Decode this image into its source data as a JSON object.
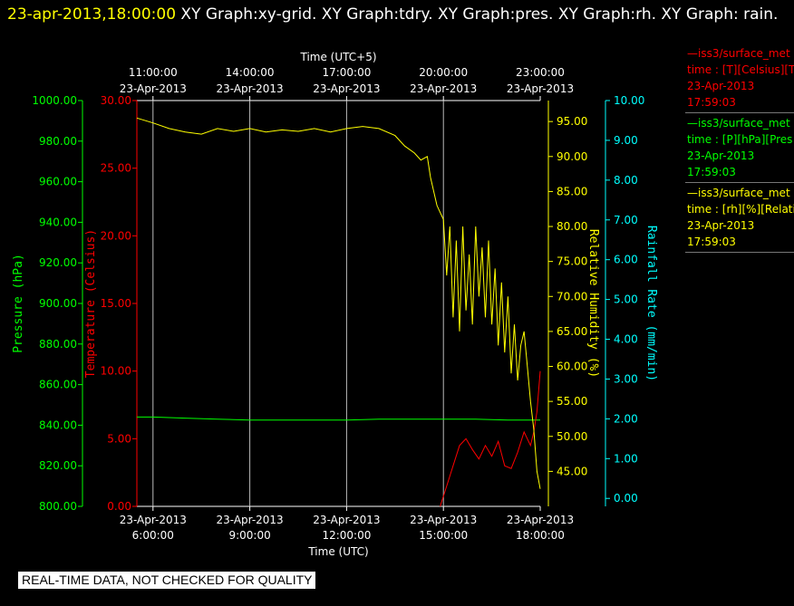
{
  "title": {
    "timestamp": "23-apr-2013,18:00:00",
    "rest": "  XY Graph:xy-grid.  XY Graph:tdry.  XY Graph:pres.  XY Graph:rh.  XY Graph: rain."
  },
  "legend": [
    {
      "name": "—iss3/surface_met",
      "fields": "time : [T][Celsius][T",
      "date": "23-Apr-2013",
      "time": "17:59:03",
      "color": "#ff0000"
    },
    {
      "name": "—iss3/surface_met",
      "fields": "time : [P][hPa][Pres",
      "date": "23-Apr-2013",
      "time": "17:59:03",
      "color": "#00ff00"
    },
    {
      "name": "—iss3/surface_met",
      "fields": "time : [rh][%][Relati",
      "date": "23-Apr-2013",
      "time": "17:59:03",
      "color": "#ffff00"
    }
  ],
  "banner": "REAL-TIME DATA, NOT CHECKED FOR QUALITY",
  "chart_data": {
    "type": "line",
    "x_top_label": "Time (UTC+5)",
    "x_bottom_label": "Time (UTC)",
    "x_range_hours": [
      5.5,
      18.0
    ],
    "x_ticks": [
      {
        "utc_hour": 6,
        "bottom": [
          "23-Apr-2013",
          "6:00:00"
        ],
        "top": [
          "11:00:00",
          "23-Apr-2013"
        ]
      },
      {
        "utc_hour": 9,
        "bottom": [
          "23-Apr-2013",
          "9:00:00"
        ],
        "top": [
          "14:00:00",
          "23-Apr-2013"
        ]
      },
      {
        "utc_hour": 12,
        "bottom": [
          "23-Apr-2013",
          "12:00:00"
        ],
        "top": [
          "17:00:00",
          "23-Apr-2013"
        ]
      },
      {
        "utc_hour": 15,
        "bottom": [
          "23-Apr-2013",
          "15:00:00"
        ],
        "top": [
          "20:00:00",
          "23-Apr-2013"
        ]
      },
      {
        "utc_hour": 18,
        "bottom": [
          "23-Apr-2013",
          "18:00:00"
        ],
        "top": [
          "23:00:00",
          "23-Apr-2013"
        ]
      }
    ],
    "axes": {
      "pressure": {
        "label": "Pressure (hPa)",
        "color": "#00ff00",
        "range": [
          800,
          1000
        ],
        "ticks": [
          "800.00",
          "820.00",
          "840.00",
          "860.00",
          "880.00",
          "900.00",
          "920.00",
          "940.00",
          "960.00",
          "980.00",
          "1000.00"
        ]
      },
      "temperature": {
        "label": "Temperature (Celsius)",
        "color": "#ff0000",
        "range": [
          0,
          30
        ],
        "ticks": [
          "0.00",
          "5.00",
          "10.00",
          "15.00",
          "20.00",
          "25.00",
          "30.00"
        ]
      },
      "humidity": {
        "label": "Relative Humidity (%)",
        "color": "#ffff00",
        "range": [
          40,
          98
        ],
        "ticks": [
          "45.00",
          "50.00",
          "55.00",
          "60.00",
          "65.00",
          "70.00",
          "75.00",
          "80.00",
          "85.00",
          "90.00",
          "95.00"
        ]
      },
      "rainfall": {
        "label": "Rainfall Rate (mm/min)",
        "color": "#00ffff",
        "range": [
          -0.2,
          10
        ],
        "ticks": [
          "0.00",
          "1.00",
          "2.00",
          "3.00",
          "4.00",
          "5.00",
          "6.00",
          "7.00",
          "8.00",
          "9.00",
          "10.00"
        ]
      }
    },
    "series": [
      {
        "axis": "pressure",
        "color": "#00ff00",
        "points": [
          [
            5.5,
            844
          ],
          [
            6,
            844
          ],
          [
            7,
            843.5
          ],
          [
            8,
            843
          ],
          [
            9,
            842.5
          ],
          [
            10,
            842.5
          ],
          [
            11,
            842.5
          ],
          [
            12,
            842.5
          ],
          [
            13,
            843
          ],
          [
            14,
            843
          ],
          [
            15,
            843
          ],
          [
            16,
            843
          ],
          [
            17,
            842.5
          ],
          [
            18,
            842.5
          ]
        ]
      },
      {
        "axis": "temperature",
        "color": "#ff0000",
        "points": [
          [
            14.9,
            0
          ],
          [
            15.1,
            1.5
          ],
          [
            15.3,
            3.0
          ],
          [
            15.5,
            4.5
          ],
          [
            15.7,
            5.0
          ],
          [
            15.9,
            4.2
          ],
          [
            16.1,
            3.5
          ],
          [
            16.3,
            4.5
          ],
          [
            16.5,
            3.7
          ],
          [
            16.7,
            4.8
          ],
          [
            16.9,
            3.0
          ],
          [
            17.1,
            2.8
          ],
          [
            17.3,
            4.0
          ],
          [
            17.5,
            5.5
          ],
          [
            17.7,
            4.5
          ],
          [
            17.8,
            5.5
          ],
          [
            17.9,
            7.0
          ],
          [
            18.0,
            10.0
          ]
        ]
      },
      {
        "axis": "humidity",
        "color": "#ffff00",
        "points": [
          [
            5.5,
            95.5
          ],
          [
            6,
            94.8
          ],
          [
            6.5,
            94.0
          ],
          [
            7,
            93.5
          ],
          [
            7.5,
            93.2
          ],
          [
            8,
            94.0
          ],
          [
            8.5,
            93.6
          ],
          [
            9,
            94.0
          ],
          [
            9.5,
            93.5
          ],
          [
            10,
            93.8
          ],
          [
            10.5,
            93.6
          ],
          [
            11,
            94.0
          ],
          [
            11.5,
            93.5
          ],
          [
            12,
            94.0
          ],
          [
            12.5,
            94.3
          ],
          [
            13,
            94.0
          ],
          [
            13.5,
            93.0
          ],
          [
            13.8,
            91.5
          ],
          [
            14.1,
            90.5
          ],
          [
            14.3,
            89.5
          ],
          [
            14.5,
            90.0
          ],
          [
            14.6,
            87
          ],
          [
            14.8,
            83
          ],
          [
            15,
            81
          ],
          [
            15.1,
            73
          ],
          [
            15.2,
            80
          ],
          [
            15.3,
            67
          ],
          [
            15.4,
            78
          ],
          [
            15.5,
            65
          ],
          [
            15.6,
            80
          ],
          [
            15.7,
            68
          ],
          [
            15.8,
            76
          ],
          [
            15.9,
            66
          ],
          [
            16.0,
            80
          ],
          [
            16.1,
            70
          ],
          [
            16.2,
            77
          ],
          [
            16.3,
            67
          ],
          [
            16.4,
            78
          ],
          [
            16.5,
            66
          ],
          [
            16.6,
            74
          ],
          [
            16.7,
            63
          ],
          [
            16.8,
            72
          ],
          [
            16.9,
            62
          ],
          [
            17.0,
            70
          ],
          [
            17.1,
            59
          ],
          [
            17.2,
            66
          ],
          [
            17.3,
            58
          ],
          [
            17.4,
            63
          ],
          [
            17.5,
            65
          ],
          [
            17.6,
            60
          ],
          [
            17.7,
            55
          ],
          [
            17.8,
            51
          ],
          [
            17.9,
            45
          ],
          [
            18.0,
            42.5
          ]
        ]
      }
    ]
  }
}
